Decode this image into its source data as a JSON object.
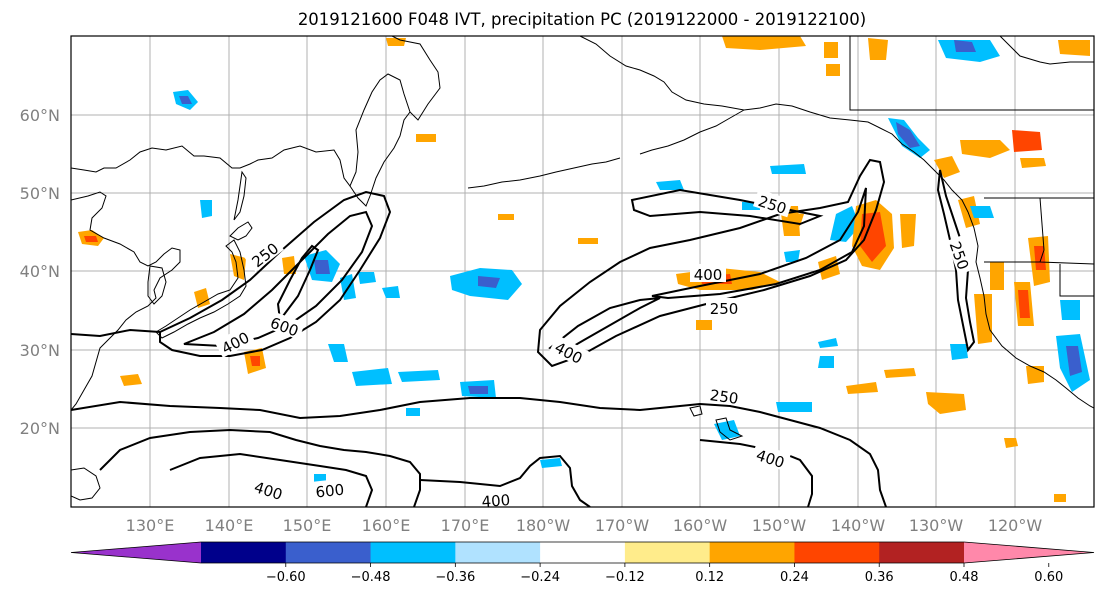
{
  "title": "2019121600 F048 IVT, precipitation PC (2019122000 - 2019122100)",
  "map": {
    "lat_labels": [
      "60°N",
      "50°N",
      "40°N",
      "30°N",
      "20°N"
    ],
    "lon_labels": [
      "130°E",
      "140°E",
      "150°E",
      "160°E",
      "170°E",
      "180°W",
      "170°W",
      "160°W",
      "150°W",
      "140°W",
      "130°W",
      "120°W"
    ]
  },
  "ivt_contour_labels": [
    {
      "id": "ivt-250-japan",
      "text": "250"
    },
    {
      "id": "ivt-600-japan",
      "text": "600"
    },
    {
      "id": "ivt-400-japan",
      "text": "400"
    },
    {
      "id": "ivt-400-center",
      "text": "400"
    },
    {
      "id": "ivt-250-ne-upper",
      "text": "250"
    },
    {
      "id": "ivt-400-ne",
      "text": "400"
    },
    {
      "id": "ivt-250-ne-lower",
      "text": "250"
    },
    {
      "id": "ivt-250-coast",
      "text": "250"
    },
    {
      "id": "ivt-250-south",
      "text": "250"
    },
    {
      "id": "ivt-400-south-east",
      "text": "400"
    },
    {
      "id": "ivt-400-south-west",
      "text": "400"
    },
    {
      "id": "ivt-600-south",
      "text": "600"
    },
    {
      "id": "ivt-400-bottom",
      "text": "400"
    }
  ],
  "colorbar": {
    "ticks": [
      "−0.60",
      "−0.48",
      "−0.36",
      "−0.24",
      "−0.12",
      "0.12",
      "0.24",
      "0.36",
      "0.48",
      "0.60"
    ],
    "colors": [
      "#9932cc",
      "#00008b",
      "#3a5fcd",
      "#00bfff",
      "#b0e2ff",
      "#ffffff",
      "#ffec8b",
      "#ffa500",
      "#ff4500",
      "#b22222",
      "#ff88aa"
    ]
  }
}
